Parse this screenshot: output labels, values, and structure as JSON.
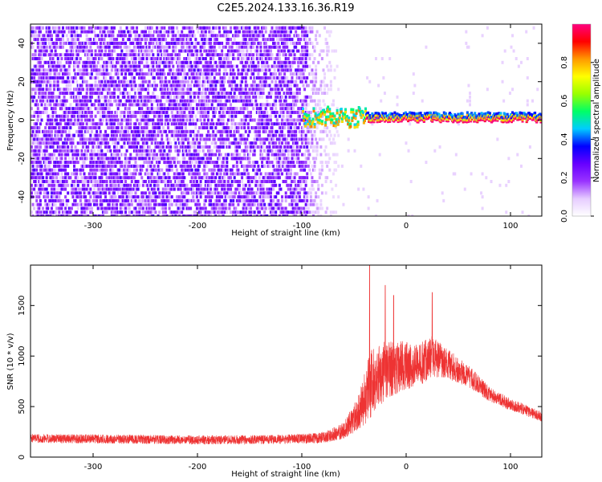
{
  "figure": {
    "title": "C2E5.2024.133.16.36.R19"
  },
  "chart_data": [
    {
      "type": "heatmap",
      "title": "C2E5.2024.133.16.36.R19",
      "xlabel": "Height of straight line (km)",
      "ylabel": "Frequency (Hz)",
      "xlim": [
        -360,
        130
      ],
      "ylim": [
        -50,
        50
      ],
      "xticks": [
        -300,
        -200,
        -100,
        0,
        100
      ],
      "yticks": [
        -40,
        -20,
        0,
        20,
        40
      ],
      "colorbar": {
        "label": "Normalized spectral amplitude",
        "range": [
          0.0,
          1.0
        ],
        "ticks": [
          0.0,
          0.2,
          0.4,
          0.6,
          0.8
        ],
        "colormap": [
          "#ffffff",
          "#e6ccff",
          "#9933ff",
          "#6600ff",
          "#0000ff",
          "#00ccff",
          "#00ff66",
          "#99ff00",
          "#ffff00",
          "#ff9900",
          "#ff0000",
          "#ff0080"
        ]
      },
      "features": {
        "noise_region_x": [
          -360,
          -95
        ],
        "noise_fade_x": [
          -95,
          -65
        ],
        "signal_onset_x": -100,
        "signal_line_frequency_hz": 0,
        "signal_peak_amplitude": 1.0
      },
      "grid": false
    },
    {
      "type": "line",
      "xlabel": "Height of straight line (km)",
      "ylabel": "SNR (10 * v/v)",
      "xlim": [
        -360,
        130
      ],
      "ylim": [
        0,
        1900
      ],
      "xticks": [
        -300,
        -200,
        -100,
        0,
        100
      ],
      "yticks": [
        0,
        500,
        1000,
        1500
      ],
      "series": [
        {
          "color": "#ee3333",
          "envelope_x": [
            -360,
            -300,
            -200,
            -120,
            -80,
            -60,
            -45,
            -35,
            -20,
            -5,
            10,
            25,
            40,
            60,
            80,
            100,
            130
          ],
          "envelope_mean": [
            185,
            180,
            170,
            175,
            190,
            260,
            450,
            700,
            850,
            900,
            900,
            1000,
            920,
            800,
            620,
            520,
            400
          ],
          "envelope_spread": [
            90,
            90,
            90,
            90,
            110,
            160,
            350,
            700,
            600,
            500,
            450,
            400,
            300,
            220,
            150,
            120,
            100
          ],
          "peaks": [
            [
              -35,
              1900
            ],
            [
              -20,
              1700
            ],
            [
              -12,
              1600
            ],
            [
              25,
              1630
            ]
          ]
        }
      ],
      "grid": false
    }
  ]
}
